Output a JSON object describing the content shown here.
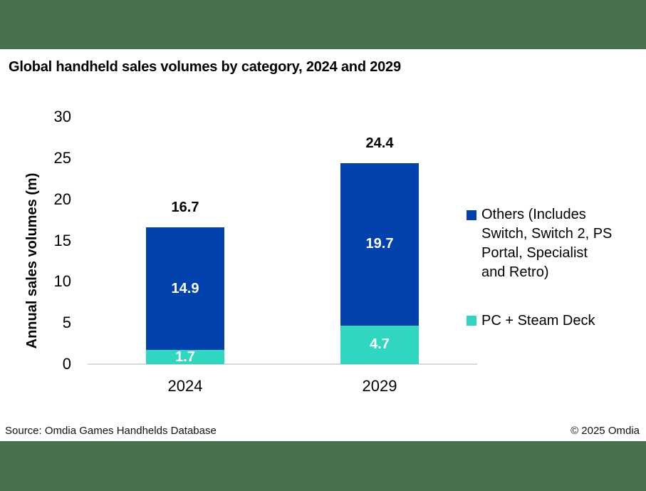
{
  "title": "Global handheld sales volumes by category, 2024 and 2029",
  "colors": {
    "brand_green": "#48704E",
    "bar_blue": "#0342AC",
    "bar_teal": "#31D6C1",
    "axis_line": "#D9D9D9"
  },
  "chart_data": {
    "type": "bar",
    "stacked": true,
    "title": "Global handheld sales volumes by category, 2024 and 2029",
    "xlabel": "",
    "ylabel": "Annual sales volumes (m)",
    "categories": [
      "2024",
      "2029"
    ],
    "series": [
      {
        "name": "Others (Includes Switch, Switch 2, PS Portal, Specialist and Retro)",
        "color": "#0342AC",
        "values": [
          14.9,
          19.7
        ]
      },
      {
        "name": "PC + Steam Deck",
        "color": "#31D6C1",
        "values": [
          1.7,
          4.7
        ]
      }
    ],
    "totals": [
      16.7,
      24.4
    ],
    "yticks": [
      0,
      5,
      10,
      15,
      20,
      25,
      30
    ],
    "ylim": [
      0,
      30
    ],
    "grid": false,
    "legend_position": "right"
  },
  "footer": {
    "source": "Source: Omdia Games Handhelds Database",
    "copyright": "© 2025 Omdia"
  }
}
